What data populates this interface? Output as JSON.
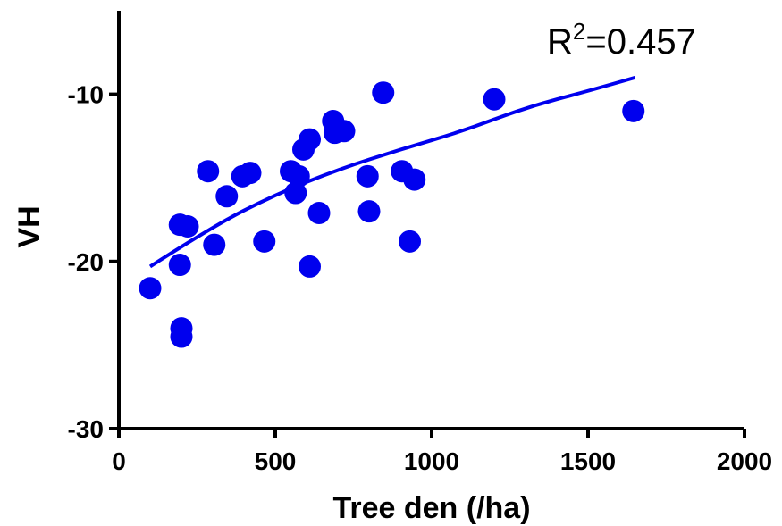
{
  "chart_data": {
    "type": "scatter",
    "title": "",
    "xlabel": "Tree den (/ha)",
    "ylabel": "VH",
    "xlim": [
      0,
      2000
    ],
    "ylim": [
      -30,
      -5
    ],
    "x_ticks": [
      0,
      500,
      1000,
      1500,
      2000
    ],
    "y_ticks": [
      -10,
      -20,
      -30
    ],
    "grid": false,
    "legend": "none",
    "annotation": {
      "base": "R",
      "sup": "2",
      "rest": "=0.457"
    },
    "series": [
      {
        "color": "#0000ee",
        "points": [
          {
            "x": 100,
            "y": -21.6
          },
          {
            "x": 195,
            "y": -20.2
          },
          {
            "x": 195,
            "y": -17.8
          },
          {
            "x": 220,
            "y": -17.9
          },
          {
            "x": 200,
            "y": -24.0
          },
          {
            "x": 200,
            "y": -24.5
          },
          {
            "x": 285,
            "y": -14.6
          },
          {
            "x": 305,
            "y": -19.0
          },
          {
            "x": 345,
            "y": -16.1
          },
          {
            "x": 395,
            "y": -14.9
          },
          {
            "x": 420,
            "y": -14.7
          },
          {
            "x": 465,
            "y": -18.8
          },
          {
            "x": 550,
            "y": -14.6
          },
          {
            "x": 565,
            "y": -15.9
          },
          {
            "x": 575,
            "y": -14.9
          },
          {
            "x": 590,
            "y": -13.3
          },
          {
            "x": 610,
            "y": -12.7
          },
          {
            "x": 610,
            "y": -20.3
          },
          {
            "x": 640,
            "y": -17.1
          },
          {
            "x": 685,
            "y": -11.6
          },
          {
            "x": 690,
            "y": -12.3
          },
          {
            "x": 720,
            "y": -12.2
          },
          {
            "x": 795,
            "y": -14.9
          },
          {
            "x": 800,
            "y": -17.0
          },
          {
            "x": 845,
            "y": -9.9
          },
          {
            "x": 905,
            "y": -14.6
          },
          {
            "x": 930,
            "y": -18.8
          },
          {
            "x": 945,
            "y": -15.1
          },
          {
            "x": 1200,
            "y": -10.3
          },
          {
            "x": 1645,
            "y": -11.0
          }
        ]
      }
    ],
    "fit_curve": {
      "color": "#0000ee",
      "points": [
        {
          "x": 100,
          "y": -20.3
        },
        {
          "x": 300,
          "y": -17.9
        },
        {
          "x": 500,
          "y": -16.0
        },
        {
          "x": 700,
          "y": -14.5
        },
        {
          "x": 900,
          "y": -13.3
        },
        {
          "x": 1100,
          "y": -12.2
        },
        {
          "x": 1300,
          "y": -10.8
        },
        {
          "x": 1500,
          "y": -9.8
        },
        {
          "x": 1650,
          "y": -9.0
        }
      ]
    }
  }
}
